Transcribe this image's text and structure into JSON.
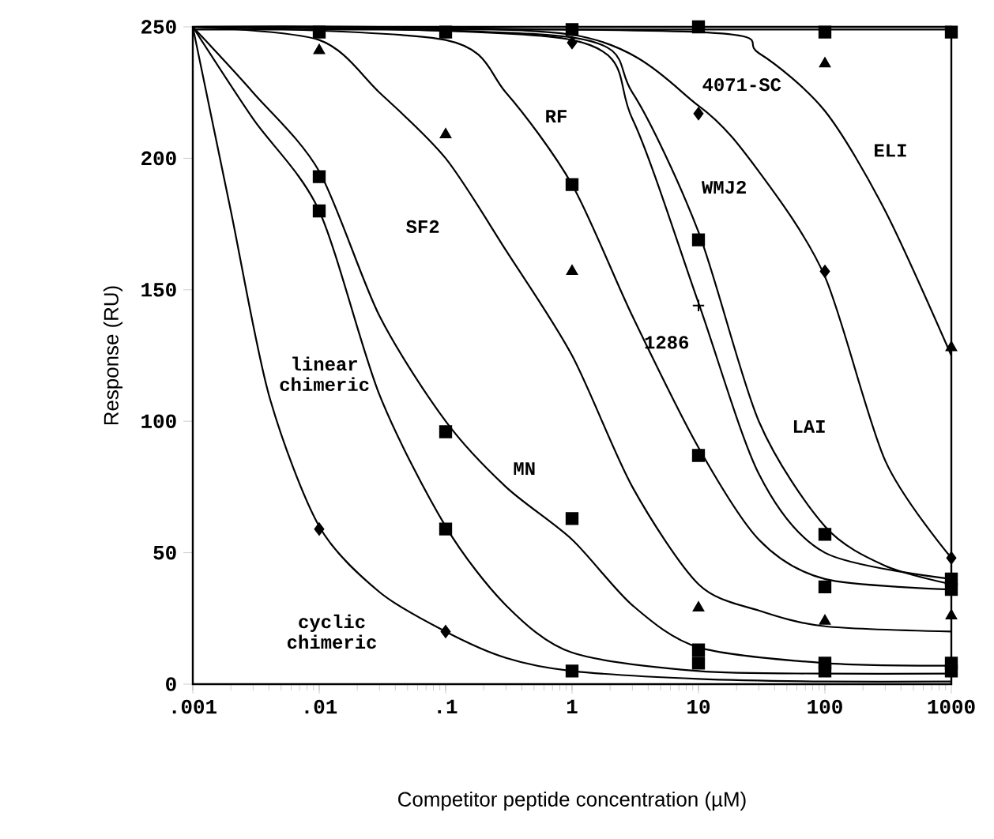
{
  "chart_data": {
    "type": "line",
    "xlabel": "Competitor peptide concentration (µM)",
    "ylabel": "Response (RU)",
    "log": "x",
    "xlim": [
      0.001,
      1000
    ],
    "ylim": [
      0,
      250
    ],
    "xticks": [
      {
        "value": 0.001,
        "label": ".001"
      },
      {
        "value": 0.01,
        "label": ".01"
      },
      {
        "value": 0.1,
        "label": ".1"
      },
      1,
      10,
      100,
      1000
    ],
    "yticks": [
      0,
      50,
      100,
      150,
      200,
      250
    ],
    "series": [
      {
        "color": "#000000",
        "line_style": "solid",
        "x": [
          0.001,
          0.002,
          0.004,
          0.01,
          0.03,
          0.1,
          0.3,
          1,
          10,
          100,
          1000
        ],
        "values": [
          250,
          180,
          110,
          60,
          35,
          20,
          10,
          5,
          2,
          1,
          1
        ]
      },
      {
        "color": "#000000",
        "line_style": "solid",
        "x": [
          0.001,
          0.003,
          0.01,
          0.03,
          0.1,
          0.3,
          1,
          10,
          100,
          1000
        ],
        "values": [
          250,
          215,
          180,
          110,
          60,
          30,
          12,
          5,
          4,
          4
        ]
      },
      {
        "color": "#000000",
        "line_style": "solid",
        "x": [
          0.001,
          0.003,
          0.01,
          0.03,
          0.1,
          0.3,
          1,
          3,
          10,
          100,
          1000
        ],
        "values": [
          250,
          225,
          195,
          140,
          100,
          75,
          55,
          30,
          14,
          8,
          7
        ]
      },
      {
        "color": "#000000",
        "line_style": "solid",
        "x": [
          0.001,
          0.01,
          0.03,
          0.1,
          0.3,
          1,
          3,
          10,
          30,
          100,
          1000
        ],
        "values": [
          250,
          245,
          225,
          200,
          165,
          125,
          75,
          38,
          28,
          22,
          20
        ]
      },
      {
        "color": "#000000",
        "line_style": "solid",
        "x": [
          0.001,
          0.1,
          0.3,
          1,
          3,
          10,
          30,
          100,
          1000
        ],
        "values": [
          250,
          245,
          225,
          190,
          140,
          90,
          55,
          40,
          36
        ]
      },
      {
        "color": "#000000",
        "line_style": "solid",
        "x": [
          0.001,
          1,
          3,
          10,
          30,
          100,
          1000
        ],
        "values": [
          250,
          245,
          215,
          145,
          80,
          50,
          40
        ]
      },
      {
        "color": "#000000",
        "line_style": "solid",
        "x": [
          0.001,
          1,
          3,
          10,
          30,
          100,
          300,
          1000
        ],
        "values": [
          250,
          246,
          225,
          172,
          100,
          60,
          45,
          38
        ]
      },
      {
        "color": "#000000",
        "line_style": "solid",
        "x": [
          0.001,
          1,
          10,
          30,
          100,
          300,
          1000
        ],
        "values": [
          250,
          247,
          220,
          195,
          155,
          85,
          48
        ]
      },
      {
        "color": "#000000",
        "line_style": "solid",
        "x": [
          0.001,
          10,
          30,
          100,
          300,
          1000
        ],
        "values": [
          250,
          248,
          240,
          218,
          180,
          125
        ]
      },
      {
        "color": "#000000",
        "line_style": "solid",
        "x": [
          0.001,
          1000
        ],
        "values": [
          249,
          249
        ]
      },
      {
        "type": "scatter",
        "color": "#000000",
        "marker": "diamond",
        "x": [
          0.01,
          0.1
        ],
        "values": [
          59,
          20
        ]
      },
      {
        "type": "scatter",
        "color": "#000000",
        "marker": "square",
        "x": [
          0.01,
          0.1,
          1,
          10,
          100,
          1000
        ],
        "values": [
          180,
          59,
          5,
          8,
          5,
          5
        ]
      },
      {
        "type": "scatter",
        "color": "#000000",
        "marker": "square",
        "x": [
          0.01,
          0.1,
          1,
          10,
          100,
          1000
        ],
        "values": [
          193,
          96,
          63,
          13,
          8,
          8
        ]
      },
      {
        "type": "scatter",
        "color": "#000000",
        "marker": "triangle",
        "x": [
          0.1,
          1,
          10,
          100,
          1000
        ],
        "values": [
          209,
          157,
          29,
          24,
          26
        ]
      },
      {
        "type": "scatter",
        "color": "#000000",
        "marker": "square",
        "x": [
          1,
          10,
          100,
          1000
        ],
        "values": [
          190,
          87,
          37,
          40
        ]
      },
      {
        "type": "scatter",
        "color": "#000000",
        "marker": "cross",
        "x": [
          10
        ],
        "values": [
          144
        ]
      },
      {
        "type": "scatter",
        "color": "#000000",
        "marker": "square",
        "x": [
          10,
          100,
          1000
        ],
        "values": [
          169,
          57,
          36
        ]
      },
      {
        "type": "scatter",
        "color": "#000000",
        "marker": "diamond",
        "x": [
          1,
          10,
          100,
          1000
        ],
        "values": [
          244,
          217,
          157,
          48
        ]
      },
      {
        "type": "scatter",
        "color": "#000000",
        "marker": "triangle",
        "x": [
          0.01,
          100,
          1000
        ],
        "values": [
          241,
          236,
          128
        ]
      },
      {
        "type": "scatter",
        "color": "#000000",
        "marker": "square",
        "x": [
          0.01,
          0.1,
          1,
          10,
          100,
          1000
        ],
        "values": [
          248,
          248,
          249,
          250,
          248,
          248
        ]
      }
    ],
    "annotations": [
      "4071-SC",
      "ELI",
      "RF",
      "WMJ2",
      "SF2",
      "1286",
      "linear chimeric",
      "MN",
      "LAI",
      "cyclic chimeric"
    ]
  }
}
